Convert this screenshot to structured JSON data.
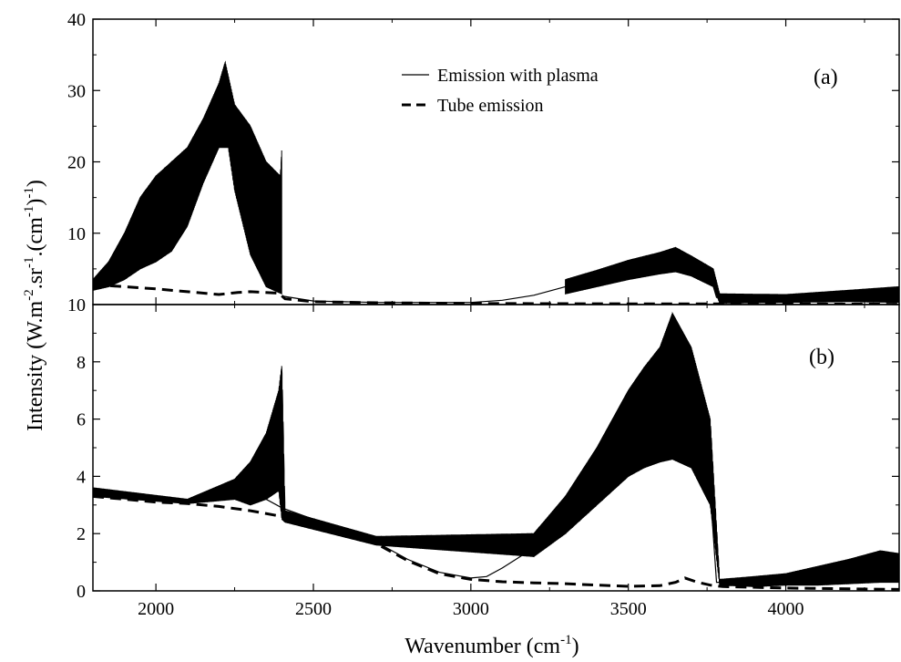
{
  "chart_data": [
    {
      "type": "line",
      "panel_label": "(a)",
      "xlim": [
        1800,
        4360
      ],
      "ylim": [
        0,
        40
      ],
      "yticks": [
        10,
        20,
        30,
        40
      ],
      "grid": false,
      "legend_position": "top-center",
      "legend": [
        {
          "label": "Emission with plasma",
          "style": "solid"
        },
        {
          "label": "Tube emission",
          "style": "dashed"
        }
      ],
      "series": [
        {
          "name": "Emission with plasma",
          "style": "solid",
          "color": "#000000",
          "envelope_upper": [
            [
              1800,
              3.5
            ],
            [
              1850,
              6
            ],
            [
              1900,
              10
            ],
            [
              1950,
              15
            ],
            [
              2000,
              18
            ],
            [
              2050,
              20
            ],
            [
              2100,
              22
            ],
            [
              2150,
              26
            ],
            [
              2200,
              31
            ],
            [
              2220,
              34
            ],
            [
              2250,
              28
            ],
            [
              2300,
              25
            ],
            [
              2350,
              20
            ],
            [
              2395,
              18
            ],
            [
              2400,
              22
            ]
          ],
          "envelope_lower": [
            [
              1800,
              2
            ],
            [
              1850,
              2.5
            ],
            [
              1900,
              3.5
            ],
            [
              1950,
              5
            ],
            [
              2000,
              6
            ],
            [
              2050,
              7.5
            ],
            [
              2100,
              11
            ],
            [
              2150,
              17
            ],
            [
              2200,
              22
            ],
            [
              2230,
              22
            ],
            [
              2250,
              16
            ],
            [
              2300,
              7
            ],
            [
              2350,
              2.5
            ],
            [
              2400,
              1.5
            ]
          ],
          "continuum": [
            [
              2400,
              1.2
            ],
            [
              2500,
              0.5
            ],
            [
              2700,
              0.3
            ],
            [
              3000,
              0.3
            ],
            [
              3100,
              0.6
            ],
            [
              3200,
              1.3
            ],
            [
              3300,
              2.5
            ],
            [
              3400,
              3.5
            ],
            [
              3500,
              4.6
            ],
            [
              3600,
              5.5
            ],
            [
              3650,
              5.8
            ],
            [
              3700,
              5.2
            ],
            [
              3760,
              4.0
            ],
            [
              3780,
              1.0
            ],
            [
              3900,
              0.6
            ],
            [
              4000,
              0.9
            ],
            [
              4100,
              1.0
            ],
            [
              4200,
              1.2
            ],
            [
              4300,
              1.5
            ],
            [
              4360,
              1.4
            ]
          ],
          "noise_band": [
            [
              3300,
              1.5,
              3.5
            ],
            [
              3400,
              2.5,
              4.8
            ],
            [
              3500,
              3.5,
              6.2
            ],
            [
              3600,
              4.3,
              7.3
            ],
            [
              3650,
              4.6,
              8.0
            ],
            [
              3700,
              4.0,
              6.8
            ],
            [
              3770,
              2.5,
              5.0
            ],
            [
              3790,
              0.2,
              1.5
            ],
            [
              4000,
              0.3,
              1.4
            ],
            [
              4200,
              0.4,
              2.0
            ],
            [
              4360,
              0.3,
              2.5
            ]
          ]
        },
        {
          "name": "Tube emission",
          "style": "dashed",
          "color": "#000000",
          "points": [
            [
              1800,
              2.8
            ],
            [
              1900,
              2.5
            ],
            [
              2000,
              2.2
            ],
            [
              2100,
              1.8
            ],
            [
              2200,
              1.4
            ],
            [
              2260,
              1.7
            ],
            [
              2300,
              1.8
            ],
            [
              2390,
              1.6
            ],
            [
              2410,
              0.8
            ],
            [
              2500,
              0.4
            ],
            [
              2700,
              0.25
            ],
            [
              3000,
              0.15
            ],
            [
              3500,
              0.1
            ],
            [
              3800,
              0.1
            ],
            [
              4360,
              0.05
            ]
          ]
        }
      ]
    },
    {
      "type": "line",
      "panel_label": "(b)",
      "xlim": [
        1800,
        4360
      ],
      "ylim": [
        0,
        10
      ],
      "xticks": [
        2000,
        2500,
        3000,
        3500,
        4000
      ],
      "yticks": [
        0,
        2,
        4,
        6,
        8,
        10
      ],
      "xlabel": "Wavenumber (cm",
      "xlabel_sup": "-1",
      "xlabel_end": ")",
      "ylabel_parts": [
        "Intensity (W.m",
        "-2",
        ".sr",
        "-1",
        ".(cm",
        "-1",
        ")",
        "-1",
        ")"
      ],
      "grid": false,
      "series": [
        {
          "name": "Emission with plasma",
          "style": "solid",
          "color": "#000000",
          "smooth": [
            [
              1800,
              3.4
            ],
            [
              1900,
              3.25
            ],
            [
              2000,
              3.15
            ],
            [
              2100,
              3.1
            ],
            [
              2150,
              3.3
            ],
            [
              2200,
              3.5
            ],
            [
              2250,
              3.55
            ],
            [
              2300,
              3.5
            ],
            [
              2400,
              2.9
            ],
            [
              2500,
              2.5
            ],
            [
              2600,
              2.1
            ],
            [
              2700,
              1.7
            ],
            [
              2800,
              1.1
            ],
            [
              2900,
              0.65
            ],
            [
              3000,
              0.45
            ],
            [
              3050,
              0.5
            ],
            [
              3100,
              0.8
            ],
            [
              3200,
              1.5
            ],
            [
              3300,
              2.4
            ],
            [
              3400,
              3.5
            ],
            [
              3500,
              4.5
            ],
            [
              3600,
              5.2
            ],
            [
              3650,
              5.3
            ],
            [
              3700,
              5.0
            ],
            [
              3760,
              3.5
            ],
            [
              3780,
              0.3
            ],
            [
              3900,
              0.3
            ],
            [
              4000,
              0.35
            ],
            [
              4100,
              0.45
            ],
            [
              4200,
              0.55
            ],
            [
              4300,
              0.6
            ],
            [
              4360,
              0.6
            ]
          ],
          "noise_band": [
            [
              1800,
              3.3,
              3.6
            ],
            [
              2100,
              3.05,
              3.2
            ],
            [
              2250,
              3.2,
              3.9
            ],
            [
              2300,
              3.0,
              4.5
            ],
            [
              2350,
              3.2,
              5.5
            ],
            [
              2390,
              3.5,
              7.0
            ],
            [
              2400,
              2.5,
              7.9
            ],
            [
              2410,
              2.4,
              2.8
            ],
            [
              2700,
              1.6,
              1.9
            ],
            [
              3200,
              1.2,
              2.0
            ],
            [
              3300,
              2.0,
              3.3
            ],
            [
              3400,
              3.0,
              5.0
            ],
            [
              3500,
              4.0,
              7.0
            ],
            [
              3550,
              4.3,
              7.8
            ],
            [
              3600,
              4.5,
              8.5
            ],
            [
              3640,
              4.6,
              9.7
            ],
            [
              3700,
              4.3,
              8.5
            ],
            [
              3760,
              3.0,
              6.0
            ],
            [
              3790,
              0.2,
              0.4
            ],
            [
              3900,
              0.15,
              0.5
            ],
            [
              4000,
              0.2,
              0.6
            ],
            [
              4100,
              0.2,
              0.85
            ],
            [
              4200,
              0.25,
              1.1
            ],
            [
              4300,
              0.3,
              1.4
            ],
            [
              4360,
              0.3,
              1.3
            ]
          ]
        },
        {
          "name": "Tube emission",
          "style": "dashed",
          "color": "#000000",
          "points": [
            [
              1800,
              3.3
            ],
            [
              1900,
              3.2
            ],
            [
              2000,
              3.1
            ],
            [
              2100,
              3.05
            ],
            [
              2200,
              2.95
            ],
            [
              2300,
              2.8
            ],
            [
              2400,
              2.6
            ],
            [
              2500,
              2.35
            ],
            [
              2600,
              2.05
            ],
            [
              2700,
              1.65
            ],
            [
              2800,
              1.05
            ],
            [
              2900,
              0.6
            ],
            [
              3000,
              0.4
            ],
            [
              3100,
              0.32
            ],
            [
              3200,
              0.28
            ],
            [
              3300,
              0.25
            ],
            [
              3400,
              0.2
            ],
            [
              3500,
              0.16
            ],
            [
              3600,
              0.18
            ],
            [
              3650,
              0.3
            ],
            [
              3680,
              0.45
            ],
            [
              3720,
              0.3
            ],
            [
              3760,
              0.2
            ],
            [
              3800,
              0.15
            ],
            [
              4000,
              0.1
            ],
            [
              4360,
              0.05
            ]
          ]
        }
      ]
    }
  ]
}
